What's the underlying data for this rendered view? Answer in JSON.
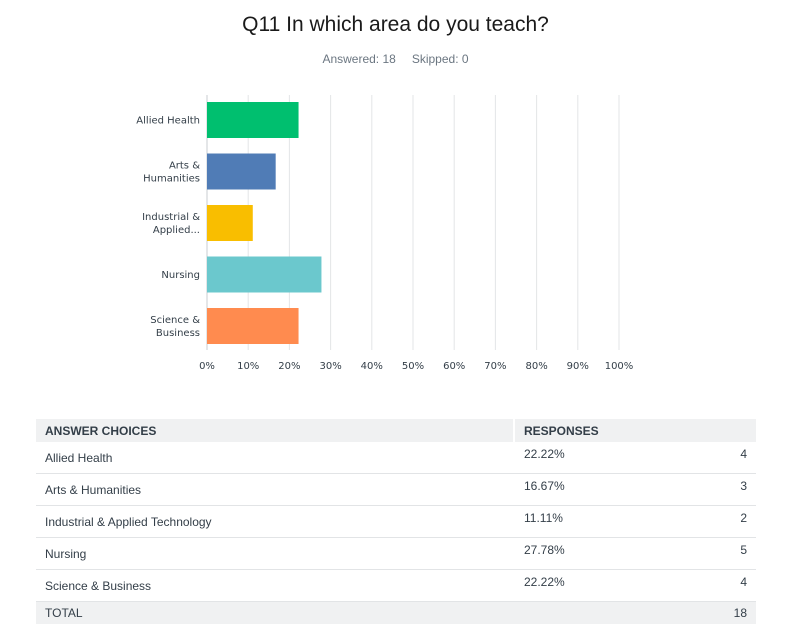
{
  "header": {
    "title": "Q11 In which area do you teach?",
    "answered": "Answered: 18",
    "skipped": "Skipped: 0"
  },
  "chart_data": {
    "type": "bar",
    "orientation": "horizontal",
    "categories": [
      [
        "Allied Health"
      ],
      [
        "Arts &",
        "Humanities"
      ],
      [
        "Industrial &",
        "Applied..."
      ],
      [
        "Nursing"
      ],
      [
        "Science &",
        "Business"
      ]
    ],
    "values": [
      22.22,
      16.67,
      11.11,
      27.78,
      22.22
    ],
    "colors": [
      "#00bf6f",
      "#507cb6",
      "#f9be00",
      "#6bc8cd",
      "#ff8b4f"
    ],
    "xlim": [
      0,
      100
    ],
    "ticks": [
      "0%",
      "10%",
      "20%",
      "30%",
      "40%",
      "50%",
      "60%",
      "70%",
      "80%",
      "90%",
      "100%"
    ],
    "grid": true,
    "title": "Q11 In which area do you teach?",
    "xlabel": "",
    "ylabel": ""
  },
  "table": {
    "headers": [
      "ANSWER CHOICES",
      "RESPONSES"
    ],
    "rows": [
      {
        "choice": "Allied Health",
        "percent": "22.22%",
        "count": "4"
      },
      {
        "choice": "Arts & Humanities",
        "percent": "16.67%",
        "count": "3"
      },
      {
        "choice": "Industrial & Applied Technology",
        "percent": "11.11%",
        "count": "2"
      },
      {
        "choice": "Nursing",
        "percent": "27.78%",
        "count": "5"
      },
      {
        "choice": "Science & Business",
        "percent": "22.22%",
        "count": "4"
      }
    ],
    "total_label": "TOTAL",
    "total_count": "18"
  }
}
